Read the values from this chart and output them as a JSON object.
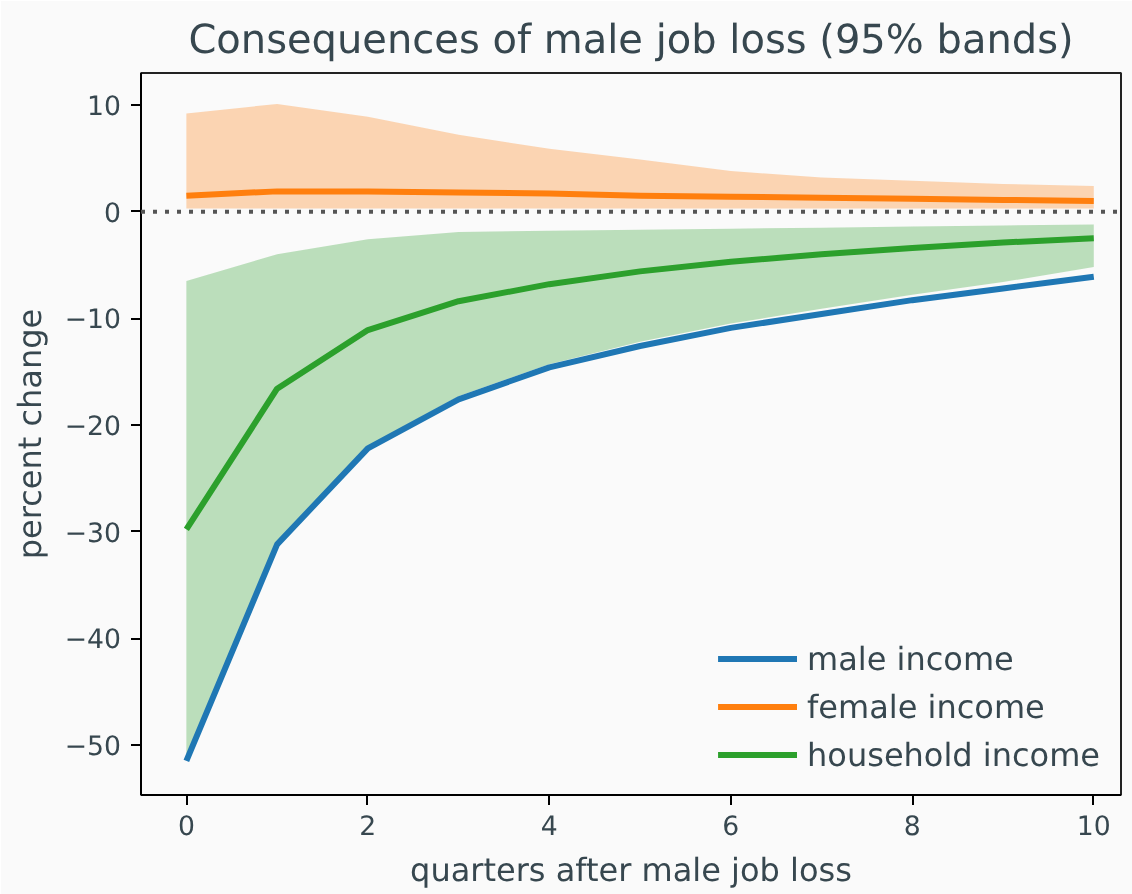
{
  "chart_data": {
    "type": "line",
    "title": "Consequences of male job loss (95% bands)",
    "xlabel": "quarters after male job loss",
    "ylabel": "percent change",
    "x": [
      0,
      1,
      2,
      3,
      4,
      5,
      6,
      7,
      8,
      9,
      10
    ],
    "xlim": [
      -0.5,
      10.3
    ],
    "ylim": [
      -54.7,
      13
    ],
    "xticks": [
      0,
      2,
      4,
      6,
      8,
      10
    ],
    "yticks": [
      {
        "value": 10,
        "label": "10"
      },
      {
        "value": 0,
        "label": "0"
      },
      {
        "value": -10,
        "label": "−10"
      },
      {
        "value": -20,
        "label": "−20"
      },
      {
        "value": -30,
        "label": "−30"
      },
      {
        "value": -40,
        "label": "−40"
      },
      {
        "value": -50,
        "label": "−50"
      }
    ],
    "series": [
      {
        "name": "male income",
        "color": "#1f77b4",
        "values": [
          -51.5,
          -31.2,
          -22.2,
          -17.6,
          -14.6,
          -12.6,
          -10.9,
          -9.6,
          -8.3,
          -7.2,
          -6.1
        ]
      },
      {
        "name": "female income",
        "color": "#ff7f0e",
        "values": [
          1.5,
          1.9,
          1.9,
          1.8,
          1.7,
          1.5,
          1.4,
          1.3,
          1.2,
          1.1,
          1.0
        ],
        "lower": [
          0.3,
          0.3,
          0.3,
          0.3,
          0.3,
          0.3,
          0.3,
          0.3,
          0.3,
          0.3,
          0.3
        ],
        "upper": [
          9.2,
          10.1,
          8.9,
          7.2,
          5.9,
          4.9,
          3.8,
          3.2,
          2.9,
          2.6,
          2.4
        ]
      },
      {
        "name": "household income",
        "color": "#2ca02c",
        "values": [
          -29.8,
          -16.6,
          -11.1,
          -8.4,
          -6.8,
          -5.6,
          -4.7,
          -4.0,
          -3.4,
          -2.9,
          -2.5
        ],
        "lower": [
          -51.0,
          -31.0,
          -22.0,
          -17.3,
          -14.3,
          -12.2,
          -10.5,
          -9.1,
          -7.8,
          -6.6,
          -5.2
        ],
        "upper": [
          -6.5,
          -4.0,
          -2.6,
          -1.9,
          -1.8,
          -1.7,
          -1.6,
          -1.5,
          -1.4,
          -1.3,
          -1.2
        ]
      }
    ],
    "ref_lines": [
      {
        "axis": "y",
        "value": 0,
        "label": null,
        "color": "#555555",
        "line_style": "dotted"
      }
    ],
    "legend": "bottom right",
    "grid": false,
    "line_style": "solid",
    "marker": "none"
  }
}
